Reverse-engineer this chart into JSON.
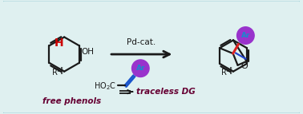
{
  "background_color": "#dff0f0",
  "border_color": "#a0d0d8",
  "title": "",
  "arrow_color": "#1a1a1a",
  "double_arrow_color": "#1a1a1a",
  "phenol_color": "#1a1a1a",
  "H_color": "#cc0000",
  "OH_color": "#1a1a1a",
  "R1_color": "#1a1a1a",
  "Ar_ball_color": "#9933cc",
  "Ar_ball_edge": "#7722aa",
  "Ar_text_color": "#1a88cc",
  "red_bond_color": "#dd2222",
  "blue_bond_color": "#2244cc",
  "O_color": "#1a1a1a",
  "pd_cat_text": "Pd-cat.",
  "pd_cat_color": "#1a1a1a",
  "free_phenols_text": "free phenols",
  "free_phenols_color": "#660033",
  "HO2C_text": "HO₂C",
  "traceless_text": "traceless DG",
  "traceless_color": "#660033",
  "cinnamic_line_color": "#1a55cc",
  "figsize": [
    3.78,
    1.43
  ],
  "dpi": 100
}
